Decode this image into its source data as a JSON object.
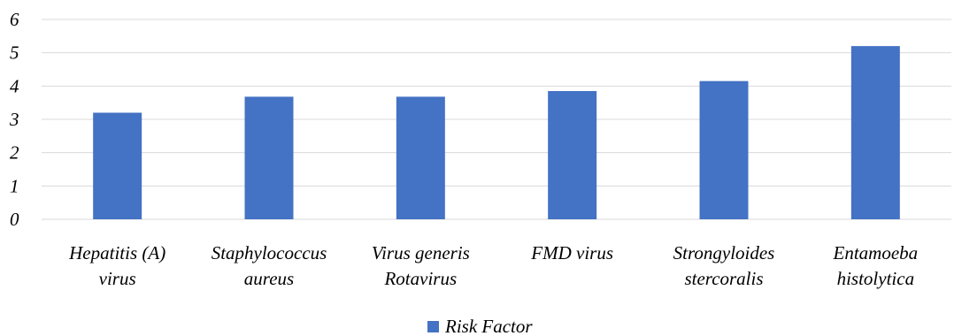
{
  "chart_data": {
    "type": "bar",
    "categories": [
      [
        "Hepatitis (A)",
        "virus"
      ],
      [
        "Staphylococcus",
        "aureus"
      ],
      [
        "Virus generis",
        "Rotavirus"
      ],
      [
        "FMD virus"
      ],
      [
        "Strongyloides",
        "stercoralis"
      ],
      [
        "Entamoeba",
        "histolytica"
      ]
    ],
    "series": [
      {
        "name": "Risk Factor",
        "values": [
          3.2,
          3.68,
          3.68,
          3.85,
          4.15,
          5.2
        ],
        "color": "#4472C4"
      }
    ],
    "yticks": [
      "0",
      "1",
      "2",
      "3",
      "4",
      "5",
      "6"
    ],
    "ylim": [
      0,
      6
    ],
    "grid": true,
    "legend_position": "bottom",
    "gridline_color": "#D9D9D9"
  }
}
